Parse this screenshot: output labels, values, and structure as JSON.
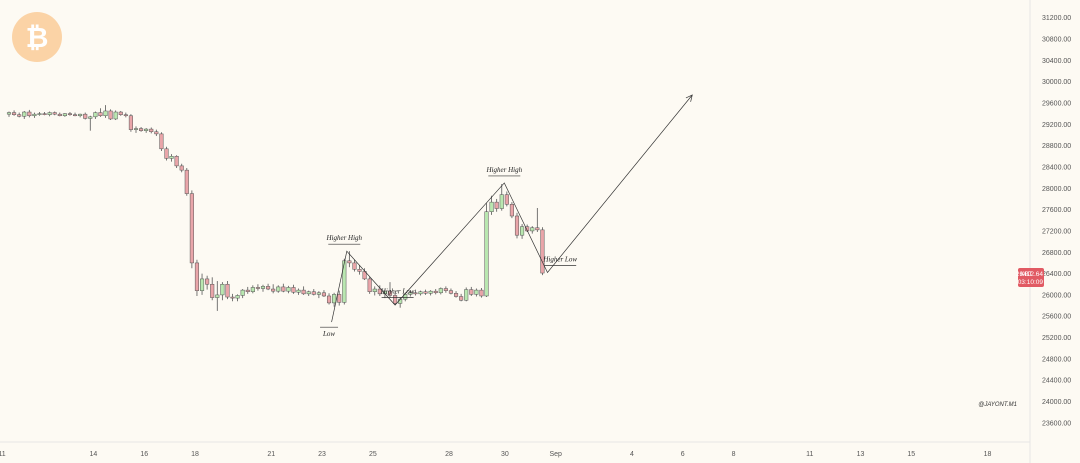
{
  "colors": {
    "background": "#fdfaf3",
    "up_candle": "#b9e7b0",
    "down_candle": "#e9a5a9",
    "down_candle_strong": "#e98f96",
    "wick": "#555555",
    "annotation_line": "#333333",
    "price_tag": "#e15a63",
    "logo_circle": "#fbd3a6",
    "axis_border": "#e6e6e6"
  },
  "logo": {
    "icon": "bitcoin-icon",
    "glyph": "₿"
  },
  "price_tag": {
    "symbol": "XBT",
    "price": "26412.64",
    "countdown": "03:10:09"
  },
  "watermark": "@JAYONT.M1",
  "chart_data": {
    "type": "candlestick",
    "y_axis": {
      "ticks": [
        "31200.00",
        "30800.00",
        "30400.00",
        "30000.00",
        "29600.00",
        "29200.00",
        "28800.00",
        "28400.00",
        "28000.00",
        "27600.00",
        "27200.00",
        "26800.00",
        "26400.00",
        "26000.00",
        "25600.00",
        "25200.00",
        "24800.00",
        "24400.00",
        "24000.00",
        "23600.00"
      ],
      "range": [
        23560,
        31250
      ],
      "position": "right"
    },
    "x_axis": {
      "ticks": [
        {
          "label": "11",
          "bar": 0
        },
        {
          "label": "14",
          "bar": 18
        },
        {
          "label": "16",
          "bar": 28
        },
        {
          "label": "18",
          "bar": 38
        },
        {
          "label": "21",
          "bar": 53
        },
        {
          "label": "23",
          "bar": 63
        },
        {
          "label": "25",
          "bar": 73
        },
        {
          "label": "28",
          "bar": 88
        },
        {
          "label": "30",
          "bar": 99
        },
        {
          "label": "Sep",
          "bar": 109
        },
        {
          "label": "4",
          "bar": 124
        },
        {
          "label": "6",
          "bar": 134
        },
        {
          "label": "8",
          "bar": 144
        },
        {
          "label": "11",
          "bar": 159
        },
        {
          "label": "13",
          "bar": 169
        },
        {
          "label": "15",
          "bar": 179
        },
        {
          "label": "18",
          "bar": 194
        }
      ]
    },
    "candles": [
      {
        "o": 29390,
        "h": 29440,
        "l": 29340,
        "c": 29420
      },
      {
        "o": 29420,
        "h": 29460,
        "l": 29360,
        "c": 29380
      },
      {
        "o": 29380,
        "h": 29420,
        "l": 29330,
        "c": 29350
      },
      {
        "o": 29350,
        "h": 29450,
        "l": 29300,
        "c": 29430
      },
      {
        "o": 29430,
        "h": 29470,
        "l": 29330,
        "c": 29360
      },
      {
        "o": 29360,
        "h": 29420,
        "l": 29320,
        "c": 29390
      },
      {
        "o": 29390,
        "h": 29430,
        "l": 29360,
        "c": 29400
      },
      {
        "o": 29400,
        "h": 29430,
        "l": 29370,
        "c": 29380
      },
      {
        "o": 29380,
        "h": 29440,
        "l": 29350,
        "c": 29420
      },
      {
        "o": 29420,
        "h": 29440,
        "l": 29370,
        "c": 29390
      },
      {
        "o": 29390,
        "h": 29420,
        "l": 29350,
        "c": 29360
      },
      {
        "o": 29360,
        "h": 29410,
        "l": 29340,
        "c": 29400
      },
      {
        "o": 29400,
        "h": 29430,
        "l": 29360,
        "c": 29380
      },
      {
        "o": 29380,
        "h": 29420,
        "l": 29350,
        "c": 29360
      },
      {
        "o": 29360,
        "h": 29400,
        "l": 29330,
        "c": 29390
      },
      {
        "o": 29390,
        "h": 29420,
        "l": 29290,
        "c": 29310
      },
      {
        "o": 29310,
        "h": 29360,
        "l": 29080,
        "c": 29340
      },
      {
        "o": 29340,
        "h": 29440,
        "l": 29300,
        "c": 29420
      },
      {
        "o": 29420,
        "h": 29500,
        "l": 29340,
        "c": 29360
      },
      {
        "o": 29360,
        "h": 29560,
        "l": 29320,
        "c": 29450
      },
      {
        "o": 29450,
        "h": 29480,
        "l": 29280,
        "c": 29300
      },
      {
        "o": 29300,
        "h": 29460,
        "l": 29280,
        "c": 29430
      },
      {
        "o": 29430,
        "h": 29450,
        "l": 29360,
        "c": 29380
      },
      {
        "o": 29380,
        "h": 29420,
        "l": 29330,
        "c": 29360
      },
      {
        "o": 29360,
        "h": 29390,
        "l": 29060,
        "c": 29100
      },
      {
        "o": 29100,
        "h": 29160,
        "l": 29040,
        "c": 29120
      },
      {
        "o": 29120,
        "h": 29150,
        "l": 29060,
        "c": 29080
      },
      {
        "o": 29080,
        "h": 29130,
        "l": 29040,
        "c": 29110
      },
      {
        "o": 29110,
        "h": 29140,
        "l": 29030,
        "c": 29060
      },
      {
        "o": 29060,
        "h": 29100,
        "l": 28980,
        "c": 29020
      },
      {
        "o": 29020,
        "h": 29050,
        "l": 28700,
        "c": 28740
      },
      {
        "o": 28740,
        "h": 28780,
        "l": 28520,
        "c": 28560
      },
      {
        "o": 28560,
        "h": 28640,
        "l": 28500,
        "c": 28600
      },
      {
        "o": 28600,
        "h": 28620,
        "l": 28380,
        "c": 28420
      },
      {
        "o": 28420,
        "h": 28460,
        "l": 28300,
        "c": 28340
      },
      {
        "o": 28340,
        "h": 28380,
        "l": 27860,
        "c": 27900
      },
      {
        "o": 27900,
        "h": 27960,
        "l": 26500,
        "c": 26600
      },
      {
        "o": 26600,
        "h": 26660,
        "l": 25980,
        "c": 26080
      },
      {
        "o": 26080,
        "h": 26400,
        "l": 26000,
        "c": 26300
      },
      {
        "o": 26300,
        "h": 26360,
        "l": 26100,
        "c": 26200
      },
      {
        "o": 26200,
        "h": 26330,
        "l": 25900,
        "c": 25950
      },
      {
        "o": 25950,
        "h": 26260,
        "l": 25700,
        "c": 26000
      },
      {
        "o": 26000,
        "h": 26240,
        "l": 25900,
        "c": 26200
      },
      {
        "o": 26200,
        "h": 26260,
        "l": 25920,
        "c": 25960
      },
      {
        "o": 25960,
        "h": 26020,
        "l": 25880,
        "c": 25940
      },
      {
        "o": 25940,
        "h": 26010,
        "l": 25880,
        "c": 25990
      },
      {
        "o": 25990,
        "h": 26110,
        "l": 25940,
        "c": 26090
      },
      {
        "o": 26090,
        "h": 26150,
        "l": 26020,
        "c": 26060
      },
      {
        "o": 26060,
        "h": 26180,
        "l": 26030,
        "c": 26140
      },
      {
        "o": 26140,
        "h": 26200,
        "l": 26080,
        "c": 26120
      },
      {
        "o": 26120,
        "h": 26190,
        "l": 26060,
        "c": 26160
      },
      {
        "o": 26160,
        "h": 26210,
        "l": 26090,
        "c": 26110
      },
      {
        "o": 26110,
        "h": 26200,
        "l": 26030,
        "c": 26070
      },
      {
        "o": 26070,
        "h": 26180,
        "l": 26040,
        "c": 26150
      },
      {
        "o": 26150,
        "h": 26210,
        "l": 26050,
        "c": 26070
      },
      {
        "o": 26070,
        "h": 26170,
        "l": 26030,
        "c": 26140
      },
      {
        "o": 26140,
        "h": 26190,
        "l": 26020,
        "c": 26050
      },
      {
        "o": 26050,
        "h": 26120,
        "l": 26000,
        "c": 26090
      },
      {
        "o": 26090,
        "h": 26160,
        "l": 26000,
        "c": 26020
      },
      {
        "o": 26020,
        "h": 26080,
        "l": 25980,
        "c": 26060
      },
      {
        "o": 26060,
        "h": 26110,
        "l": 25990,
        "c": 26010
      },
      {
        "o": 26010,
        "h": 26070,
        "l": 25940,
        "c": 26040
      },
      {
        "o": 26040,
        "h": 26090,
        "l": 25960,
        "c": 25980
      },
      {
        "o": 25980,
        "h": 26030,
        "l": 25820,
        "c": 25850
      },
      {
        "o": 25850,
        "h": 26040,
        "l": 25780,
        "c": 26010
      },
      {
        "o": 26010,
        "h": 26080,
        "l": 25800,
        "c": 25860
      },
      {
        "o": 25860,
        "h": 26680,
        "l": 25820,
        "c": 26640
      },
      {
        "o": 26640,
        "h": 26820,
        "l": 26520,
        "c": 26600
      },
      {
        "o": 26600,
        "h": 26660,
        "l": 26440,
        "c": 26480
      },
      {
        "o": 26480,
        "h": 26560,
        "l": 26380,
        "c": 26440
      },
      {
        "o": 26440,
        "h": 26500,
        "l": 26280,
        "c": 26300
      },
      {
        "o": 26300,
        "h": 26340,
        "l": 26020,
        "c": 26060
      },
      {
        "o": 26060,
        "h": 26160,
        "l": 25990,
        "c": 26110
      },
      {
        "o": 26110,
        "h": 26180,
        "l": 25980,
        "c": 26020
      },
      {
        "o": 26020,
        "h": 26100,
        "l": 25940,
        "c": 26070
      },
      {
        "o": 26070,
        "h": 26240,
        "l": 25950,
        "c": 25990
      },
      {
        "o": 25990,
        "h": 26040,
        "l": 25810,
        "c": 25840
      },
      {
        "o": 25840,
        "h": 25960,
        "l": 25760,
        "c": 25920
      },
      {
        "o": 25920,
        "h": 26040,
        "l": 25880,
        "c": 26010
      },
      {
        "o": 26010,
        "h": 26070,
        "l": 25970,
        "c": 26040
      },
      {
        "o": 26040,
        "h": 26100,
        "l": 25990,
        "c": 26020
      },
      {
        "o": 26020,
        "h": 26080,
        "l": 25990,
        "c": 26060
      },
      {
        "o": 26060,
        "h": 26100,
        "l": 26000,
        "c": 26030
      },
      {
        "o": 26030,
        "h": 26090,
        "l": 25990,
        "c": 26070
      },
      {
        "o": 26070,
        "h": 26110,
        "l": 26010,
        "c": 26040
      },
      {
        "o": 26040,
        "h": 26140,
        "l": 26010,
        "c": 26120
      },
      {
        "o": 26120,
        "h": 26160,
        "l": 26040,
        "c": 26080
      },
      {
        "o": 26080,
        "h": 26120,
        "l": 26010,
        "c": 26030
      },
      {
        "o": 26030,
        "h": 26070,
        "l": 25950,
        "c": 25970
      },
      {
        "o": 25970,
        "h": 26020,
        "l": 25880,
        "c": 25900
      },
      {
        "o": 25900,
        "h": 26140,
        "l": 25880,
        "c": 26100
      },
      {
        "o": 26100,
        "h": 26150,
        "l": 25980,
        "c": 26010
      },
      {
        "o": 26010,
        "h": 26120,
        "l": 25970,
        "c": 26090
      },
      {
        "o": 26090,
        "h": 26130,
        "l": 25950,
        "c": 25980
      },
      {
        "o": 25980,
        "h": 27720,
        "l": 25960,
        "c": 27560
      },
      {
        "o": 27560,
        "h": 27860,
        "l": 27500,
        "c": 27740
      },
      {
        "o": 27740,
        "h": 27800,
        "l": 27560,
        "c": 27620
      },
      {
        "o": 27620,
        "h": 28080,
        "l": 27580,
        "c": 27880
      },
      {
        "o": 27880,
        "h": 27940,
        "l": 27660,
        "c": 27700
      },
      {
        "o": 27700,
        "h": 27740,
        "l": 27440,
        "c": 27480
      },
      {
        "o": 27480,
        "h": 27540,
        "l": 27060,
        "c": 27120
      },
      {
        "o": 27120,
        "h": 27330,
        "l": 27050,
        "c": 27280
      },
      {
        "o": 27280,
        "h": 27320,
        "l": 27180,
        "c": 27200
      },
      {
        "o": 27200,
        "h": 27290,
        "l": 27150,
        "c": 27260
      },
      {
        "o": 27260,
        "h": 27630,
        "l": 27180,
        "c": 27220
      },
      {
        "o": 27220,
        "h": 27270,
        "l": 26370,
        "c": 26410
      }
    ],
    "annotations": [
      {
        "text": "Low",
        "bar": 63,
        "price": 25470
      },
      {
        "text": "Higher High",
        "bar": 66,
        "price": 26820
      },
      {
        "text": "Higher Low",
        "bar": 76.5,
        "price": 25820
      },
      {
        "text": "Higher High",
        "bar": 97.5,
        "price": 28100
      },
      {
        "text": "Higher Low",
        "bar": 108.5,
        "price": 26420
      }
    ],
    "zigzag": [
      {
        "bar": 63.5,
        "price": 25490
      },
      {
        "bar": 66.5,
        "price": 26820
      },
      {
        "bar": 76,
        "price": 25810
      },
      {
        "bar": 97.5,
        "price": 28100
      },
      {
        "bar": 106,
        "price": 26420
      },
      {
        "bar": 134.5,
        "price": 29750
      }
    ]
  }
}
